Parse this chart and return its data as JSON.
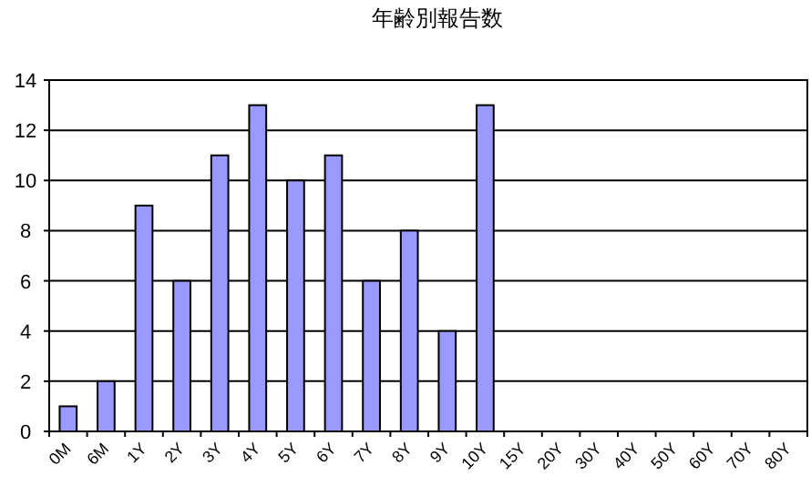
{
  "chart_data": {
    "type": "bar",
    "title": "年齢別報告数",
    "categories": [
      "0M",
      "6M",
      "1Y",
      "2Y",
      "3Y",
      "4Y",
      "5Y",
      "6Y",
      "7Y",
      "8Y",
      "9Y",
      "10Y",
      "15Y",
      "20Y",
      "30Y",
      "40Y",
      "50Y",
      "60Y",
      "70Y",
      "80Y"
    ],
    "values": [
      1,
      2,
      9,
      6,
      11,
      13,
      10,
      11,
      6,
      8,
      4,
      13,
      0,
      0,
      0,
      0,
      0,
      0,
      0,
      0
    ],
    "color": "#9999ff",
    "ylim": [
      0,
      14
    ],
    "yticks": [
      0,
      2,
      4,
      6,
      8,
      10,
      12,
      14
    ],
    "grid": "y"
  }
}
